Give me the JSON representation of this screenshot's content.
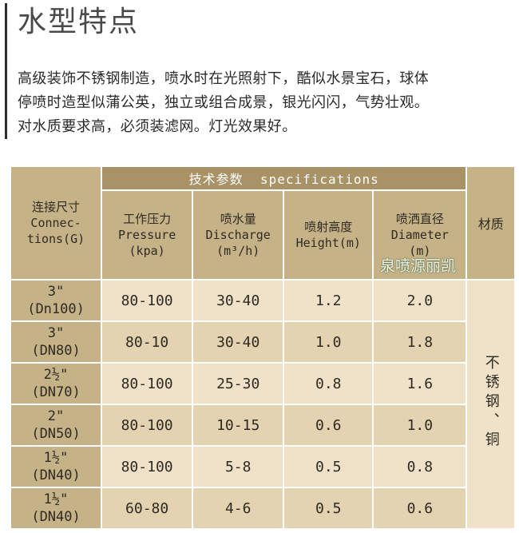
{
  "title": "水型特点",
  "description": [
    "高级装饰不锈钢制造，喷水时在光照射下，酷似水景宝石，球体",
    "停喷时造型似蒲公英，独立或组合成景，银光闪闪，气势壮观。",
    "对水质要求高，必须装滤网。灯光效果好。"
  ],
  "table": {
    "group_header": "技术参数  specifications",
    "connection_header": {
      "cn": "连接尺寸",
      "en1": "Connec-",
      "en2": "tions(G)"
    },
    "columns": [
      {
        "cn": "工作压力",
        "en": "Pressure",
        "unit": "(kpa)"
      },
      {
        "cn": "喷水量",
        "en": "Discharge",
        "unit": "(m³/h)"
      },
      {
        "cn": "喷射高度",
        "en": "Height(m)",
        "unit": ""
      },
      {
        "cn": "喷洒直径",
        "en": "Diameter",
        "unit": "(m)"
      }
    ],
    "material_header": "材质",
    "material_value": "不锈钢、铜",
    "watermark": "泉喷源丽凯",
    "rows": [
      {
        "size": "3\"",
        "dn": "(Dn100)",
        "pressure": "80-100",
        "discharge": "30-40",
        "height": "1.2",
        "diameter": "2.0"
      },
      {
        "size": "3\"",
        "dn": "(DN80)",
        "pressure": "80-10",
        "discharge": "30-40",
        "height": "1.0",
        "diameter": "1.8"
      },
      {
        "size": "2½\"",
        "dn": "(DN70)",
        "pressure": "80-100",
        "discharge": "25-30",
        "height": "0.8",
        "diameter": "1.6"
      },
      {
        "size": "2\"",
        "dn": "(DN50)",
        "pressure": "80-100",
        "discharge": "10-15",
        "height": "0.6",
        "diameter": "1.0"
      },
      {
        "size": "1½\"",
        "dn": "(DN40)",
        "pressure": "80-100",
        "discharge": "5-8",
        "height": "0.5",
        "diameter": "0.8"
      },
      {
        "size": "1½\"",
        "dn": "(DN40)",
        "pressure": "60-80",
        "discharge": "4-6",
        "height": "0.5",
        "diameter": "0.6"
      }
    ]
  },
  "colors": {
    "header_dark": "#a89266",
    "header_light": "#c6b287",
    "row_light": "#efe2c9",
    "row_dark": "#e4d3b0"
  }
}
